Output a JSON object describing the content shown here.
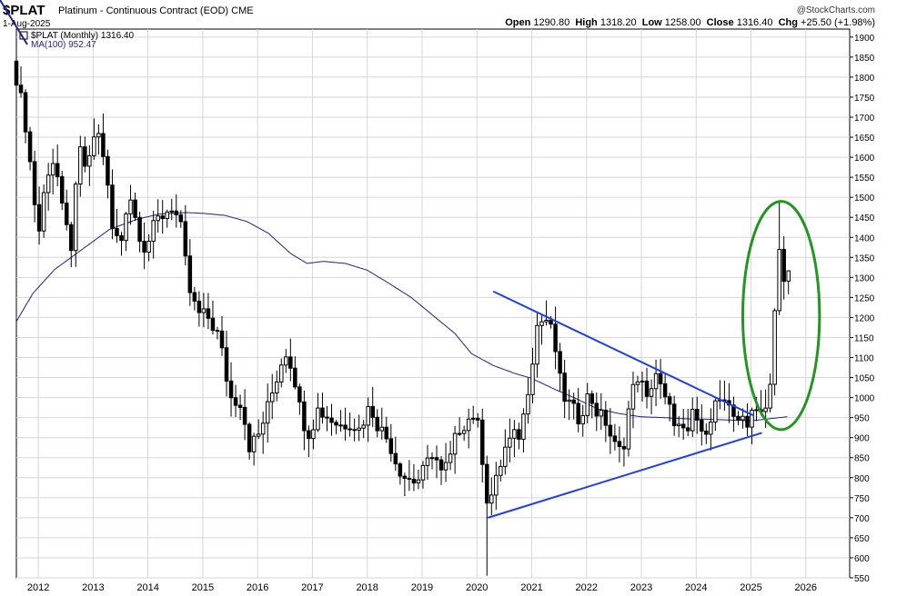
{
  "header": {
    "symbol": "$PLAT",
    "description": "Platinum - Continuous Contract (EOD)",
    "exchange": "CME",
    "date": "1-Aug-2025",
    "credit": "@StockCharts.com",
    "open_label": "Open",
    "open_value": "1290.80",
    "high_label": "High",
    "high_value": "1318.20",
    "low_label": "Low",
    "low_value": "1258.00",
    "close_label": "Close",
    "close_value": "1316.40",
    "chg_label": "Chg",
    "chg_value": "+25.50 (+1.98%)"
  },
  "legend": {
    "series1": "$PLAT (Monthly) 1316.40",
    "series2": "MA(100) 952.47"
  },
  "chart_data": {
    "type": "candlestick",
    "title": "$PLAT Platinum - Continuous Contract (EOD) CME",
    "ylim": [
      550,
      1920
    ],
    "y_ticks": [
      550,
      600,
      650,
      700,
      750,
      800,
      850,
      900,
      950,
      1000,
      1050,
      1100,
      1150,
      1200,
      1250,
      1300,
      1350,
      1400,
      1450,
      1500,
      1550,
      1600,
      1650,
      1700,
      1750,
      1800,
      1850,
      1900
    ],
    "x_ticks": [
      "2012",
      "2013",
      "2014",
      "2015",
      "2016",
      "2017",
      "2018",
      "2019",
      "2020",
      "2021",
      "2022",
      "2023",
      "2024",
      "2025",
      "2026"
    ],
    "x_tick_times": [
      2012,
      2013,
      2014,
      2015,
      2016,
      2017,
      2018,
      2019,
      2020,
      2021,
      2022,
      2023,
      2024,
      2025,
      2026
    ],
    "x_range": [
      2011.6,
      2026.8
    ],
    "close_anchors": [
      [
        2011.6,
        1800
      ],
      [
        2011.75,
        1700
      ],
      [
        2011.9,
        1530
      ],
      [
        2012.0,
        1400
      ],
      [
        2012.15,
        1560
      ],
      [
        2012.3,
        1600
      ],
      [
        2012.45,
        1450
      ],
      [
        2012.6,
        1380
      ],
      [
        2012.75,
        1620
      ],
      [
        2012.9,
        1560
      ],
      [
        2013.05,
        1680
      ],
      [
        2013.2,
        1600
      ],
      [
        2013.35,
        1420
      ],
      [
        2013.5,
        1380
      ],
      [
        2013.65,
        1520
      ],
      [
        2013.8,
        1430
      ],
      [
        2013.95,
        1370
      ],
      [
        2014.15,
        1440
      ],
      [
        2014.3,
        1460
      ],
      [
        2014.45,
        1480
      ],
      [
        2014.6,
        1420
      ],
      [
        2014.75,
        1270
      ],
      [
        2014.9,
        1210
      ],
      [
        2015.1,
        1200
      ],
      [
        2015.3,
        1150
      ],
      [
        2015.5,
        1000
      ],
      [
        2015.7,
        990
      ],
      [
        2015.85,
        880
      ],
      [
        2016.0,
        900
      ],
      [
        2016.15,
        960
      ],
      [
        2016.35,
        1050
      ],
      [
        2016.5,
        1120
      ],
      [
        2016.65,
        1070
      ],
      [
        2016.8,
        950
      ],
      [
        2016.95,
        910
      ],
      [
        2017.1,
        970
      ],
      [
        2017.3,
        950
      ],
      [
        2017.5,
        930
      ],
      [
        2017.7,
        940
      ],
      [
        2017.85,
        920
      ],
      [
        2018.05,
        980
      ],
      [
        2018.2,
        930
      ],
      [
        2018.4,
        890
      ],
      [
        2018.55,
        830
      ],
      [
        2018.7,
        800
      ],
      [
        2018.9,
        790
      ],
      [
        2019.05,
        820
      ],
      [
        2019.2,
        870
      ],
      [
        2019.35,
        810
      ],
      [
        2019.5,
        840
      ],
      [
        2019.65,
        920
      ],
      [
        2019.8,
        940
      ],
      [
        2019.95,
        960
      ],
      [
        2020.05,
        910
      ],
      [
        2020.2,
        730
      ],
      [
        2020.35,
        790
      ],
      [
        2020.5,
        870
      ],
      [
        2020.65,
        900
      ],
      [
        2020.8,
        910
      ],
      [
        2020.95,
        1040
      ],
      [
        2021.1,
        1180
      ],
      [
        2021.25,
        1200
      ],
      [
        2021.4,
        1150
      ],
      [
        2021.55,
        1010
      ],
      [
        2021.7,
        980
      ],
      [
        2021.85,
        950
      ],
      [
        2022.05,
        1010
      ],
      [
        2022.2,
        960
      ],
      [
        2022.35,
        940
      ],
      [
        2022.5,
        880
      ],
      [
        2022.65,
        860
      ],
      [
        2022.8,
        1000
      ],
      [
        2022.95,
        1060
      ],
      [
        2023.1,
        990
      ],
      [
        2023.25,
        1070
      ],
      [
        2023.4,
        1000
      ],
      [
        2023.55,
        960
      ],
      [
        2023.7,
        920
      ],
      [
        2023.85,
        900
      ],
      [
        2023.95,
        980
      ],
      [
        2024.1,
        900
      ],
      [
        2024.25,
        950
      ],
      [
        2024.4,
        1000
      ],
      [
        2024.55,
        970
      ],
      [
        2024.7,
        950
      ],
      [
        2024.85,
        960
      ],
      [
        2024.95,
        900
      ],
      [
        2025.05,
        1000
      ],
      [
        2025.2,
        960
      ],
      [
        2025.3,
        1000
      ],
      [
        2025.4,
        1070
      ],
      [
        2025.47,
        1360
      ],
      [
        2025.55,
        1360
      ],
      [
        2025.6,
        1290
      ],
      [
        2025.65,
        1316
      ]
    ],
    "ma_anchors": [
      [
        2011.6,
        1190
      ],
      [
        2011.9,
        1260
      ],
      [
        2012.3,
        1320
      ],
      [
        2012.8,
        1370
      ],
      [
        2013.3,
        1420
      ],
      [
        2013.8,
        1445
      ],
      [
        2014.2,
        1458
      ],
      [
        2014.7,
        1462
      ],
      [
        2015.0,
        1460
      ],
      [
        2015.4,
        1455
      ],
      [
        2015.8,
        1440
      ],
      [
        2016.2,
        1410
      ],
      [
        2016.6,
        1360
      ],
      [
        2016.9,
        1335
      ],
      [
        2017.2,
        1340
      ],
      [
        2017.6,
        1335
      ],
      [
        2018.0,
        1318
      ],
      [
        2018.4,
        1285
      ],
      [
        2018.8,
        1250
      ],
      [
        2019.2,
        1205
      ],
      [
        2019.6,
        1160
      ],
      [
        2019.9,
        1110
      ],
      [
        2020.3,
        1080
      ],
      [
        2020.7,
        1060
      ],
      [
        2021.0,
        1048
      ],
      [
        2021.4,
        1022
      ],
      [
        2021.8,
        998
      ],
      [
        2022.2,
        972
      ],
      [
        2022.6,
        960
      ],
      [
        2023.0,
        952
      ],
      [
        2023.4,
        950
      ],
      [
        2023.8,
        947
      ],
      [
        2024.2,
        946
      ],
      [
        2024.6,
        944
      ],
      [
        2025.0,
        942
      ],
      [
        2025.65,
        952
      ]
    ],
    "annotations": {
      "upper_trendline": [
        [
          2020.3,
          1265
        ],
        [
          2025.05,
          955
        ]
      ],
      "lower_trendline": [
        [
          2020.2,
          700
        ],
        [
          2025.2,
          912
        ]
      ],
      "highlight_ellipse_center": [
        2025.55,
        1205
      ],
      "highlight_ellipse_radii": [
        0.7,
        285
      ]
    },
    "colors": {
      "up": "#ffffff",
      "down": "#000000",
      "ma": "#1e1f8c",
      "trendline": "#1f3fe6",
      "ellipse": "#239622",
      "grid": "#d6d6d6"
    },
    "last_candle": {
      "open": 1290.8,
      "high": 1318.2,
      "low": 1258.0,
      "close": 1316.4
    }
  }
}
